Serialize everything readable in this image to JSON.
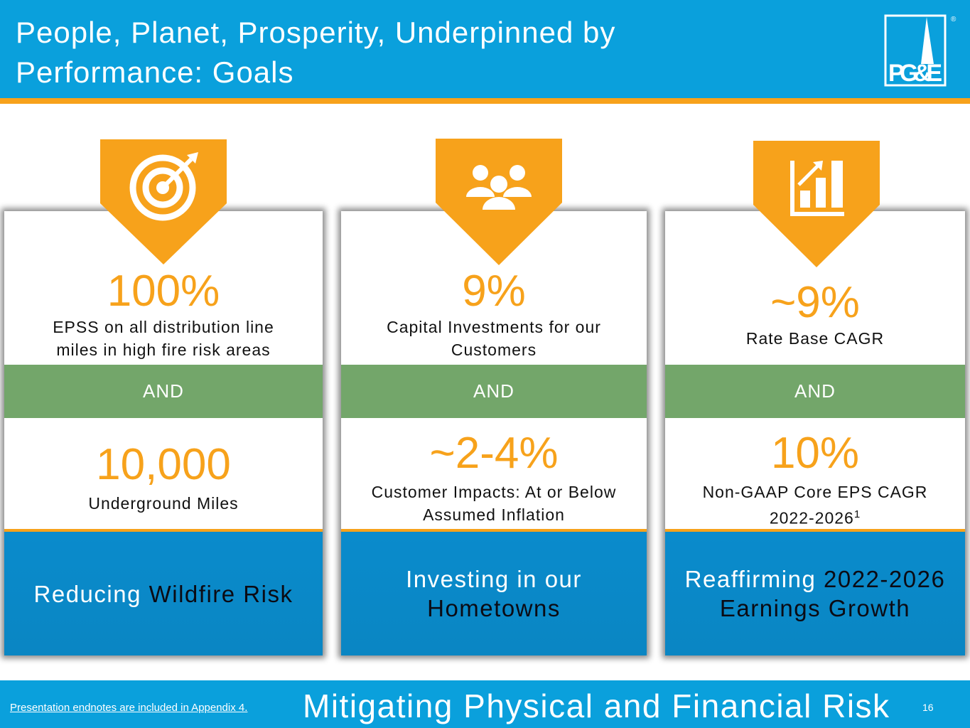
{
  "header": {
    "title_lines": [
      "People, Planet, Prosperity, Underpinned by",
      "Performance: Goals"
    ],
    "logo": "PG&E",
    "logo_mark": "®"
  },
  "cards": [
    {
      "top_value": "100%",
      "top_label": [
        "EPSS on all distribution line",
        "miles in high fire risk areas"
      ],
      "connector": "AND",
      "bottom_value": "10,000",
      "bottom_label": [
        "Underground Miles"
      ],
      "theme_light": "Reducing",
      "theme_dark": "Wildfire Risk"
    },
    {
      "top_value": "9%",
      "top_label": [
        "Capital Investments for our",
        "Customers"
      ],
      "connector": "AND",
      "bottom_value": "~2-4%",
      "bottom_label": [
        "Customer Impacts: At or Below",
        "Assumed Inflation"
      ],
      "theme_light": "Investing in our",
      "theme_dark": "Hometowns"
    },
    {
      "top_value": "~9%",
      "top_label": [
        "Rate Base CAGR"
      ],
      "connector": "AND",
      "bottom_value": "10%",
      "bottom_label": [
        "Non-GAAP Core EPS CAGR",
        "2022-2026"
      ],
      "bottom_label_note": "1",
      "theme_light": "Reaffirming",
      "theme_dark": "2022-2026 Earnings Growth"
    }
  ],
  "footer": {
    "endnote_link": "Presentation endnotes are included in Appendix 4.",
    "tagline": "Mitigating Physical and Financial Risk",
    "page_number": "16"
  }
}
